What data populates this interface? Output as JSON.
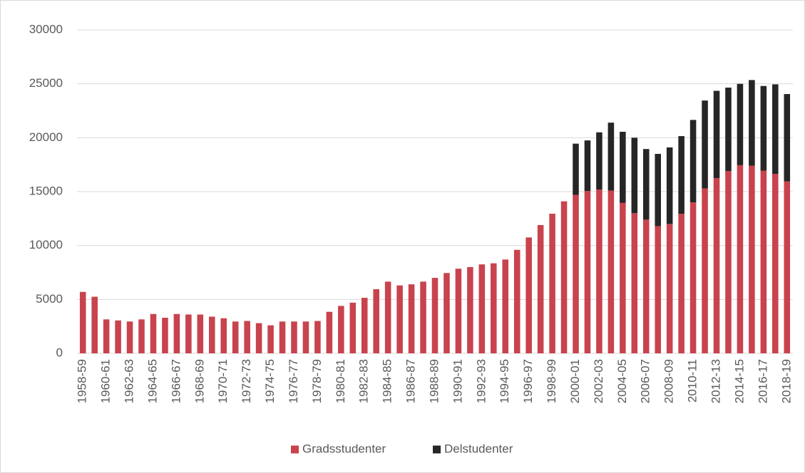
{
  "chart_data": {
    "type": "stacked_bar",
    "categories": [
      "1958-59",
      null,
      "1960-61",
      null,
      "1962-63",
      null,
      "1964-65",
      null,
      "1966-67",
      null,
      "1968-69",
      null,
      "1970-71",
      null,
      "1972-73",
      null,
      "1974-75",
      null,
      "1976-77",
      null,
      "1978-79",
      null,
      "1980-81",
      null,
      "1982-83",
      null,
      "1984-85",
      null,
      "1986-87",
      null,
      "1988-89",
      null,
      "1990-91",
      null,
      "1992-93",
      null,
      "1994-95",
      null,
      "1996-97",
      null,
      "1998-99",
      null,
      "2000-01",
      null,
      "2002-03",
      null,
      "2004-05",
      null,
      "2006-07",
      null,
      "2008-09",
      null,
      "2010-11",
      null,
      "2012-13",
      null,
      "2014-15",
      null,
      "2016-17",
      null,
      "2018-19"
    ],
    "series": [
      {
        "name": "Gradsstudenter",
        "color": "#c8434d",
        "values": [
          5700,
          5250,
          3150,
          3050,
          2950,
          3150,
          3650,
          3300,
          3650,
          3600,
          3600,
          3400,
          3250,
          2950,
          3000,
          2800,
          2600,
          2950,
          2950,
          2950,
          3000,
          3850,
          4400,
          4700,
          5150,
          5950,
          6650,
          6300,
          6400,
          6650,
          7000,
          7450,
          7850,
          8000,
          8250,
          8350,
          8700,
          9600,
          10750,
          11900,
          12950,
          14100,
          14700,
          15050,
          15200,
          15100,
          13950,
          13000,
          12400,
          11800,
          12000,
          12950,
          14000,
          15300,
          16250,
          16900,
          17450,
          17400,
          16950,
          16650,
          15950
        ]
      },
      {
        "name": "Delstudenter",
        "color": "#262626",
        "values": [
          null,
          null,
          null,
          null,
          null,
          null,
          null,
          null,
          null,
          null,
          null,
          null,
          null,
          null,
          null,
          null,
          null,
          null,
          null,
          null,
          null,
          null,
          null,
          null,
          null,
          null,
          null,
          null,
          null,
          null,
          null,
          null,
          null,
          null,
          null,
          null,
          null,
          null,
          null,
          null,
          null,
          null,
          4750,
          4700,
          5300,
          6300,
          6600,
          7000,
          6550,
          6700,
          7100,
          7200,
          7650,
          8150,
          8100,
          7750,
          7550,
          7950,
          7850,
          8300,
          8100
        ]
      }
    ],
    "ylim": [
      0,
      30000
    ],
    "yticks": [
      0,
      5000,
      10000,
      15000,
      20000,
      25000,
      30000
    ],
    "grid": true,
    "legend": "bottom"
  }
}
